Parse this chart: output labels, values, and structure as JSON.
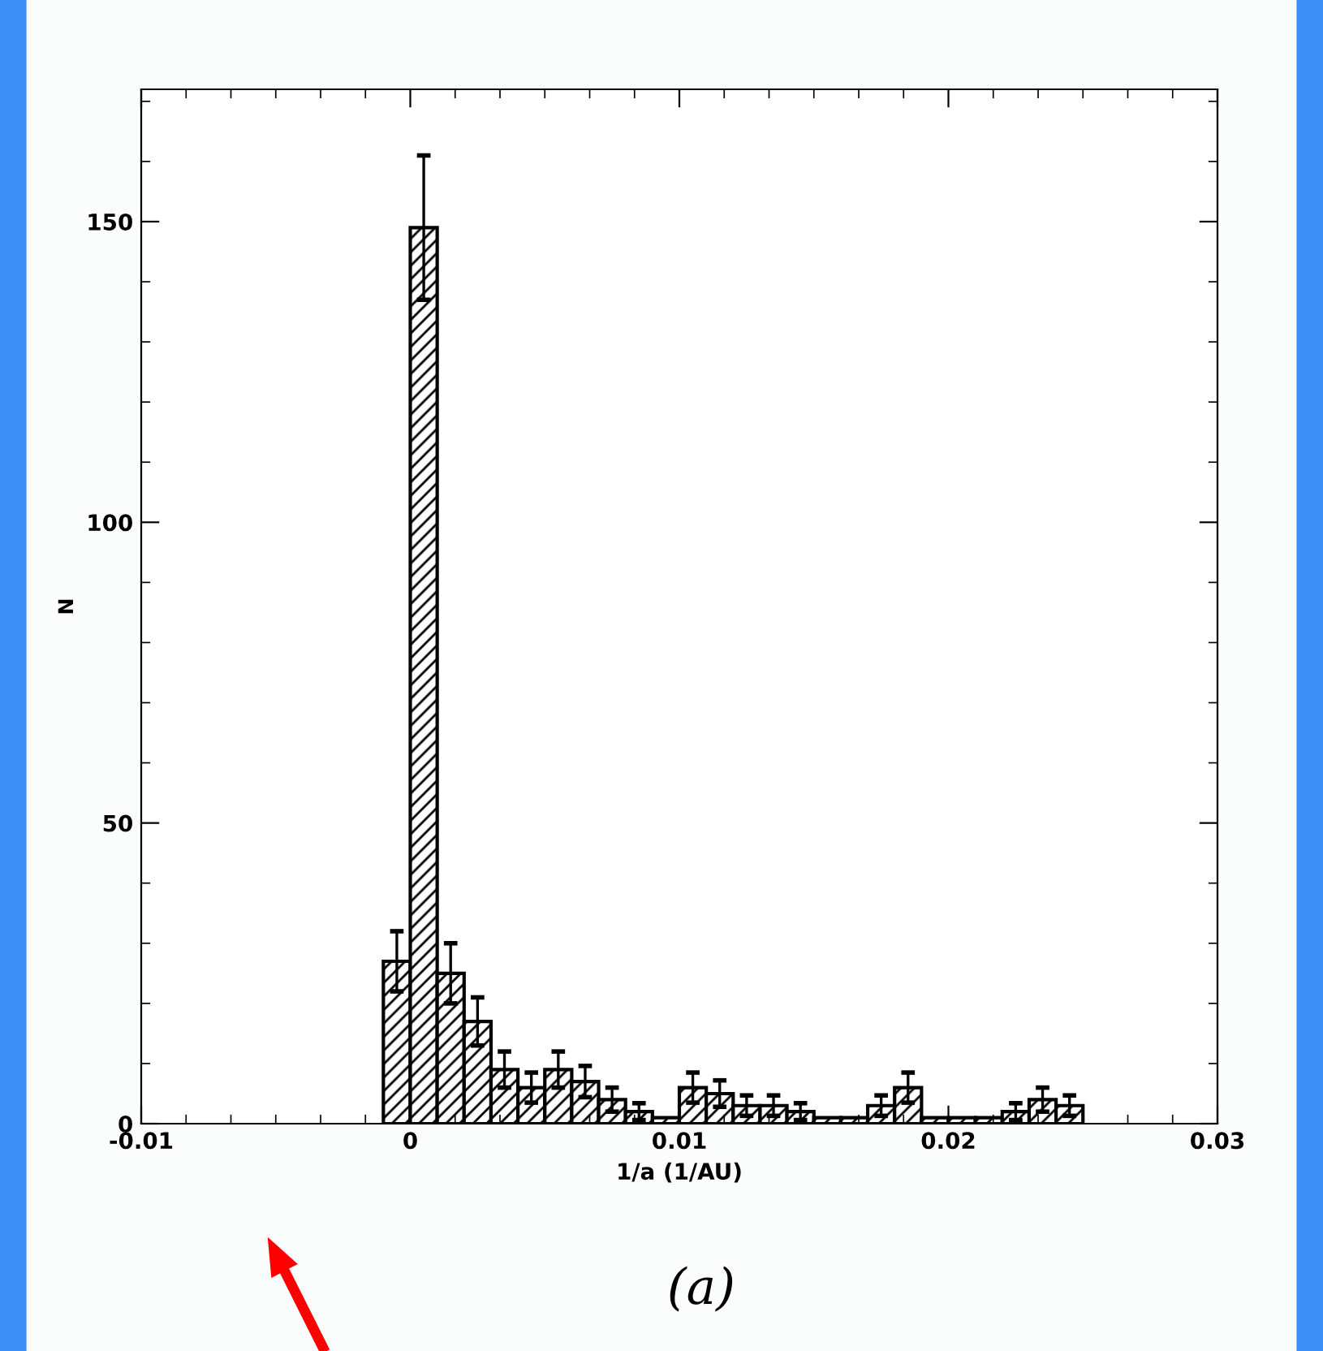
{
  "chart_data": {
    "type": "histogram",
    "xlabel": "1/a (1/AU)",
    "ylabel": "N",
    "bins": [
      -0.001,
      0.0,
      0.001,
      0.002,
      0.003,
      0.004,
      0.005,
      0.006,
      0.007,
      0.008,
      0.009,
      0.01,
      0.011,
      0.012,
      0.013,
      0.014,
      0.015,
      0.016,
      0.017,
      0.018,
      0.019,
      0.02,
      0.021,
      0.022,
      0.023,
      0.024,
      0.025
    ],
    "values": [
      27,
      149,
      25,
      17,
      9,
      6,
      9,
      7,
      4,
      2,
      1,
      6,
      5,
      3,
      3,
      2,
      1,
      1,
      3,
      6,
      1,
      1,
      1,
      2,
      4,
      3
    ],
    "errors": [
      5,
      12,
      5,
      4,
      3,
      2.5,
      3,
      2.6,
      2,
      1.4,
      null,
      2.5,
      2.2,
      1.7,
      1.7,
      1.4,
      null,
      null,
      1.7,
      2.5,
      null,
      null,
      null,
      1.4,
      2,
      1.7
    ],
    "color": "#000000",
    "xlim": [
      -0.01,
      0.03
    ],
    "ylim": [
      0,
      172
    ],
    "xticks": [
      -0.01,
      0,
      0.01,
      0.02,
      0.03
    ],
    "yticks": [
      0,
      50,
      100,
      150
    ],
    "grid": false,
    "legend": false,
    "annotations": [
      "(a)"
    ]
  }
}
